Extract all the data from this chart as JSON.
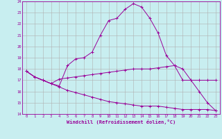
{
  "xlabel": "Windchill (Refroidissement éolien,°C)",
  "bg_color": "#c8eef0",
  "grid_color": "#b0b0b0",
  "line_color": "#990099",
  "xlim": [
    -0.5,
    23.5
  ],
  "ylim": [
    14,
    24
  ],
  "yticks": [
    14,
    15,
    16,
    17,
    18,
    19,
    20,
    21,
    22,
    23,
    24
  ],
  "xticks": [
    0,
    1,
    2,
    3,
    4,
    5,
    6,
    7,
    8,
    9,
    10,
    11,
    12,
    13,
    14,
    15,
    16,
    17,
    18,
    19,
    20,
    21,
    22,
    23
  ],
  "line1_x": [
    0,
    1,
    2,
    3,
    4,
    5,
    6,
    7,
    8,
    9,
    10,
    11,
    12,
    13,
    14,
    15,
    16,
    17,
    18,
    19,
    20,
    21,
    22,
    23
  ],
  "line1_y": [
    17.8,
    17.3,
    17.0,
    16.7,
    16.5,
    18.3,
    18.9,
    19.0,
    19.5,
    21.0,
    22.3,
    22.5,
    23.3,
    23.8,
    23.5,
    22.5,
    21.2,
    19.2,
    18.3,
    17.0,
    17.0,
    16.0,
    15.0,
    14.3
  ],
  "line2_x": [
    0,
    1,
    2,
    3,
    4,
    5,
    6,
    7,
    8,
    9,
    10,
    11,
    12,
    13,
    14,
    15,
    16,
    17,
    18,
    19,
    20,
    21,
    22,
    23
  ],
  "line2_y": [
    17.8,
    17.3,
    17.0,
    16.7,
    17.1,
    17.2,
    17.3,
    17.4,
    17.5,
    17.6,
    17.7,
    17.8,
    17.9,
    18.0,
    18.0,
    18.0,
    18.1,
    18.2,
    18.3,
    18.0,
    17.0,
    17.0,
    17.0,
    17.0
  ],
  "line3_x": [
    0,
    1,
    2,
    3,
    4,
    5,
    6,
    7,
    8,
    9,
    10,
    11,
    12,
    13,
    14,
    15,
    16,
    17,
    18,
    19,
    20,
    21,
    22,
    23
  ],
  "line3_y": [
    17.8,
    17.3,
    17.0,
    16.7,
    16.4,
    16.1,
    15.9,
    15.7,
    15.5,
    15.3,
    15.1,
    15.0,
    14.9,
    14.8,
    14.7,
    14.7,
    14.7,
    14.6,
    14.5,
    14.4,
    14.4,
    14.4,
    14.4,
    14.3
  ]
}
